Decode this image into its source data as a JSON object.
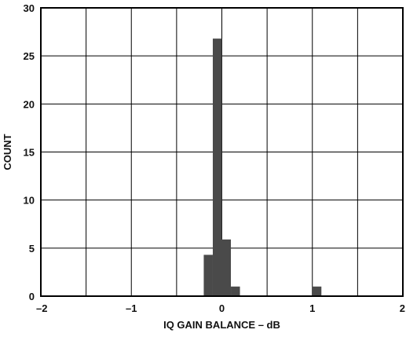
{
  "chart_data": {
    "type": "bar",
    "title": "",
    "xlabel": "IQ GAIN BALANCE – dB",
    "ylabel": "COUNT",
    "xlim": [
      -2,
      2
    ],
    "ylim": [
      0,
      30
    ],
    "x_ticks": [
      -2,
      -1,
      0,
      1,
      2
    ],
    "y_ticks": [
      0,
      5,
      10,
      15,
      20,
      25,
      30
    ],
    "x_tick_labels": [
      "–2",
      "–1",
      "0",
      "1",
      "2"
    ],
    "y_tick_labels": [
      "0",
      "5",
      "10",
      "15",
      "20",
      "25",
      "30"
    ],
    "x_minor_step": 0.5,
    "grid": true,
    "bar_color": "#4a4a4a",
    "bin_width": 0.1,
    "bins": [
      {
        "x0": -0.2,
        "x1": -0.1,
        "count": 4.3
      },
      {
        "x0": -0.1,
        "x1": 0.0,
        "count": 26.8
      },
      {
        "x0": 0.0,
        "x1": 0.1,
        "count": 5.9
      },
      {
        "x0": 0.1,
        "x1": 0.2,
        "count": 1.0
      },
      {
        "x0": 1.0,
        "x1": 1.1,
        "count": 1.0
      }
    ]
  }
}
